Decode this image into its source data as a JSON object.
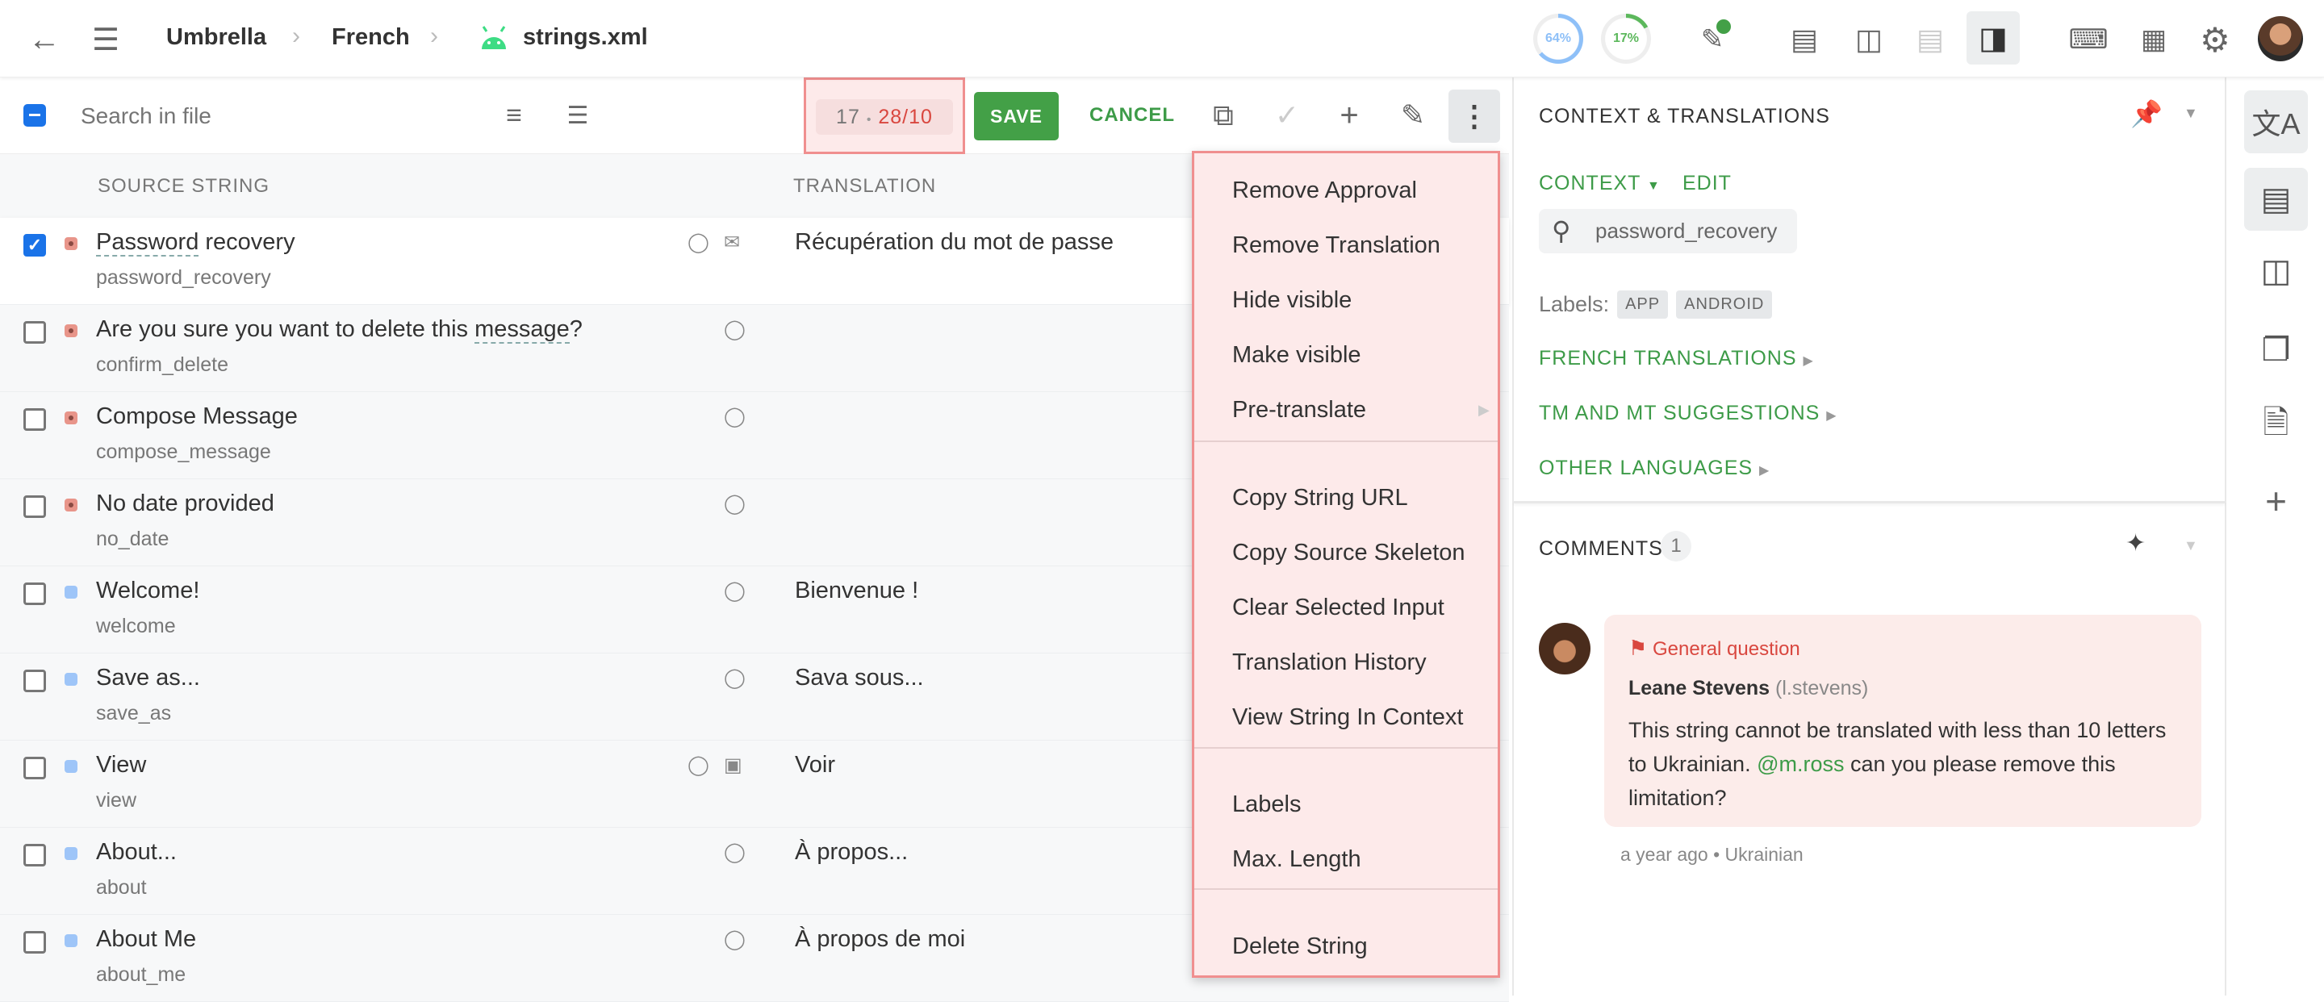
{
  "breadcrumb": {
    "project": "Umbrella",
    "language": "French",
    "file": "strings.xml",
    "separator": "›"
  },
  "progress": [
    {
      "label": "64%",
      "value": 64,
      "color": "#8ec0f8"
    },
    {
      "label": "17%",
      "value": 17,
      "color": "#5cb85c"
    }
  ],
  "toolbar": {
    "search_placeholder": "Search in file",
    "counter": {
      "current": "17",
      "sep": "•",
      "length": "28/10"
    },
    "save_label": "SAVE",
    "cancel_label": "CANCEL"
  },
  "columns": {
    "source": "SOURCE STRING",
    "translation": "TRANSLATION"
  },
  "rows": [
    {
      "pre": "",
      "mark": "Password",
      "post": " recovery",
      "key": "password_recovery",
      "translation": "Récupération du mot de passe",
      "status": "red",
      "checked": true,
      "icons": [
        "tag-icon",
        "comment-issue-icon"
      ]
    },
    {
      "pre": "Are you sure you want to delete this ",
      "mark": "message",
      "post": "?",
      "key": "confirm_delete",
      "translation": "",
      "status": "red",
      "checked": false,
      "icons": [
        "tag-icon"
      ]
    },
    {
      "pre": "Compose Message",
      "mark": "",
      "post": "",
      "key": "compose_message",
      "translation": "",
      "status": "red",
      "checked": false,
      "icons": [
        "tag-icon"
      ]
    },
    {
      "pre": "No date provided",
      "mark": "",
      "post": "",
      "key": "no_date",
      "translation": "",
      "status": "red",
      "checked": false,
      "icons": [
        "tag-icon"
      ]
    },
    {
      "pre": "Welcome!",
      "mark": "",
      "post": "",
      "key": "welcome",
      "translation": "Bienvenue !",
      "status": "blue",
      "checked": false,
      "icons": [
        "tag-icon"
      ]
    },
    {
      "pre": "Save as...",
      "mark": "",
      "post": "",
      "key": "save_as",
      "translation": "Sava sous...",
      "status": "blue",
      "checked": false,
      "icons": [
        "tag-icon"
      ]
    },
    {
      "pre": "View",
      "mark": "",
      "post": "",
      "key": "view",
      "translation": "Voir",
      "status": "blue",
      "checked": false,
      "icons": [
        "tag-icon",
        "image-icon"
      ]
    },
    {
      "pre": "About...",
      "mark": "",
      "post": "",
      "key": "about",
      "translation": "À propos...",
      "status": "blue",
      "checked": false,
      "icons": [
        "tag-icon"
      ]
    },
    {
      "pre": "About Me",
      "mark": "",
      "post": "",
      "key": "about_me",
      "translation": "À propos de moi",
      "status": "blue",
      "checked": false,
      "icons": [
        "tag-icon"
      ]
    }
  ],
  "menu": {
    "groups": [
      [
        "Remove Approval",
        "Remove Translation",
        "Hide visible",
        "Make visible",
        "Pre-translate"
      ],
      [
        "Copy String URL",
        "Copy Source Skeleton",
        "Clear Selected Input",
        "Translation History",
        "View String In Context"
      ],
      [
        "Labels",
        "Max. Length"
      ],
      [
        "Delete String"
      ]
    ],
    "submenu_item": "Pre-translate"
  },
  "context_panel": {
    "title": "CONTEXT & TRANSLATIONS",
    "context_label": "CONTEXT",
    "edit_label": "EDIT",
    "key": "password_recovery",
    "labels_title": "Labels:",
    "labels": [
      "APP",
      "ANDROID"
    ],
    "sections": [
      "FRENCH TRANSLATIONS",
      "TM AND MT SUGGESTIONS",
      "OTHER LANGUAGES"
    ]
  },
  "comments": {
    "title": "COMMENTS",
    "count": "1",
    "items": [
      {
        "type": "General question",
        "author": "Leane Stevens",
        "username": "(l.stevens)",
        "text_pre": "This string cannot be translated with less than 10 letters to Ukrainian. ",
        "mention": "@m.ross",
        "text_post": " can you please remove this limitation?",
        "time": "a year ago",
        "language": "Ukrainian"
      }
    ]
  },
  "colors": {
    "accent": "#3d9b48",
    "error": "#d9473f",
    "checkbox": "#1a73e8",
    "highlight": "#f08f8f"
  }
}
